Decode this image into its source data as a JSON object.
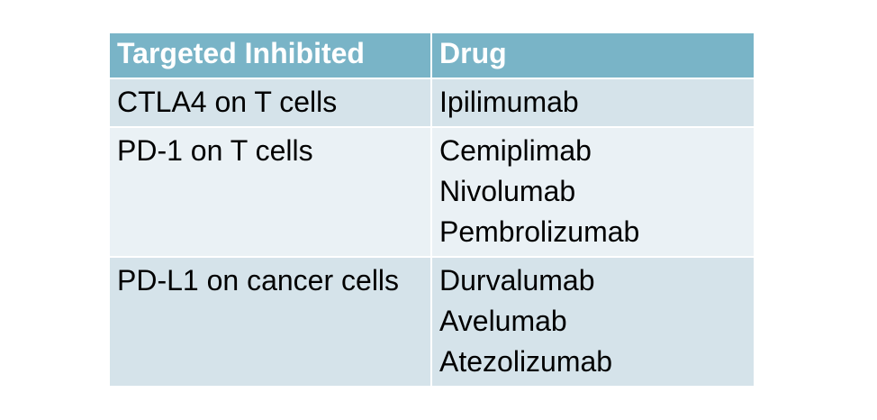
{
  "table": {
    "header": [
      "Targeted Inhibited",
      "Drug"
    ],
    "rows": [
      [
        "CTLA4 on T cells",
        [
          "Ipilimumab"
        ]
      ],
      [
        "PD-1 on T cells",
        [
          "Cemiplimab",
          "Nivolumab",
          "Pembrolizumab"
        ]
      ],
      [
        "PD-L1 on cancer cells",
        [
          "Durvalumab",
          "Avelumab",
          "Atezolizumab"
        ]
      ]
    ]
  }
}
